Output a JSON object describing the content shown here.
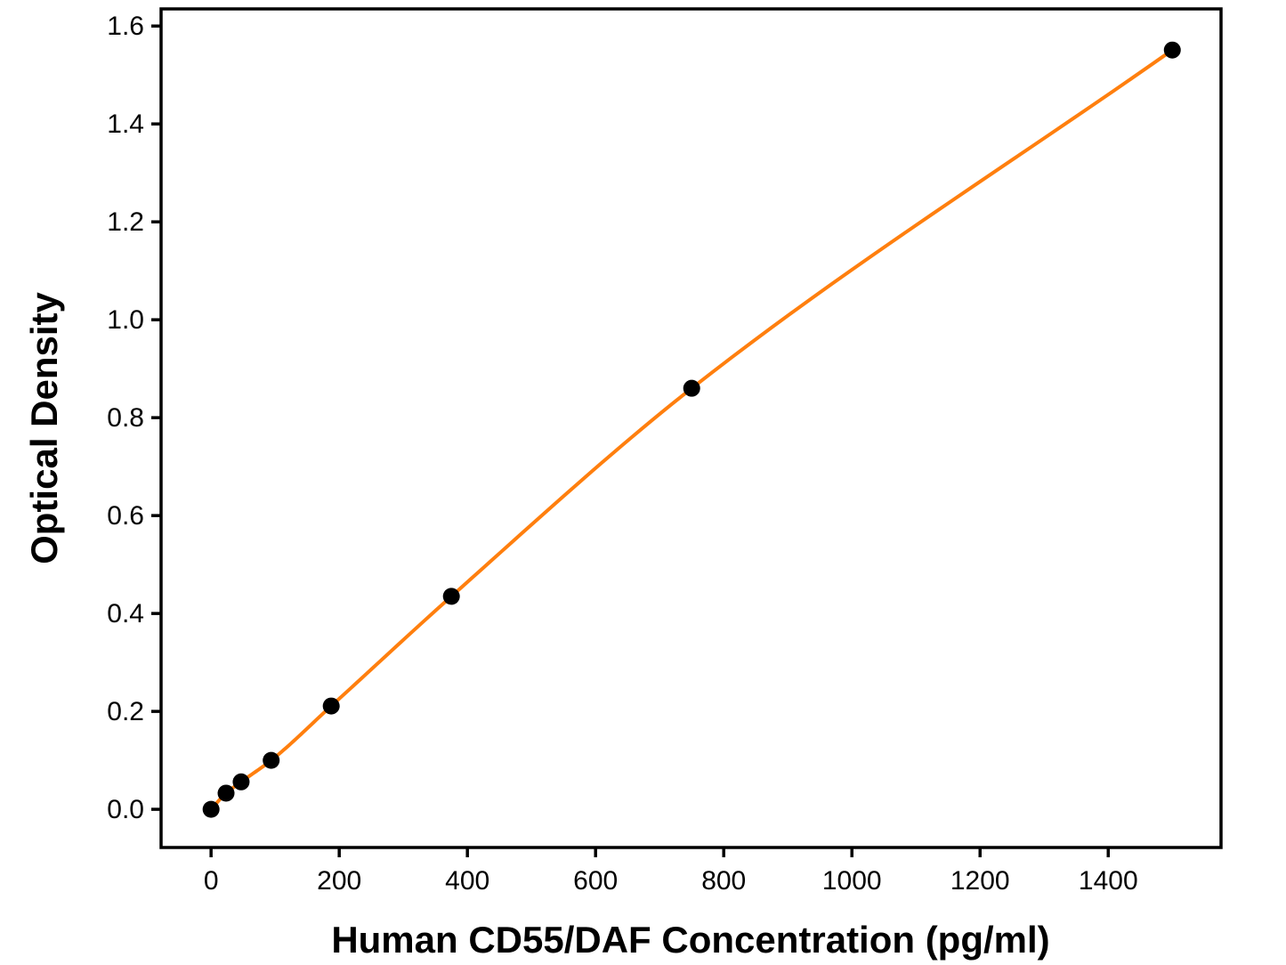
{
  "chart_data": {
    "type": "scatter",
    "xlabel": "Human CD55/DAF Concentration (pg/ml)",
    "ylabel": "Optical Density",
    "x": [
      0,
      23.4,
      46.9,
      93.8,
      187.5,
      375,
      750,
      1500
    ],
    "y": [
      0.0,
      0.033,
      0.056,
      0.1,
      0.211,
      0.435,
      0.86,
      1.551
    ],
    "curve": "smooth",
    "marker": "filled-circle",
    "xlim": [
      -78,
      1576
    ],
    "ylim": [
      -0.078,
      1.635
    ],
    "x_ticks": [
      0,
      200,
      400,
      600,
      800,
      1000,
      1200,
      1400
    ],
    "x_tick_labels": [
      "0",
      "200",
      "400",
      "600",
      "800",
      "1000",
      "1200",
      "1400"
    ],
    "y_ticks": [
      0.0,
      0.2,
      0.4,
      0.6,
      0.8,
      1.0,
      1.2,
      1.4,
      1.6
    ],
    "y_tick_labels": [
      "0.0",
      "0.2",
      "0.4",
      "0.6",
      "0.8",
      "1.0",
      "1.2",
      "1.4",
      "1.6"
    ],
    "grid": false,
    "legend": "none",
    "colors": {
      "line": "#FF7F0E",
      "marker": "#000000",
      "axis": "#000000",
      "background": "#FFFFFF"
    }
  }
}
